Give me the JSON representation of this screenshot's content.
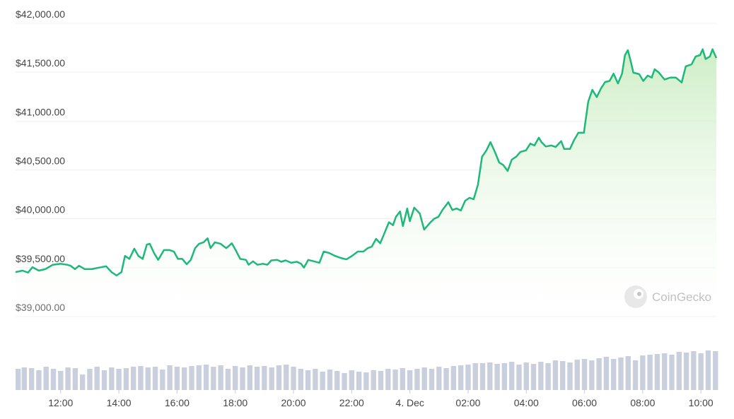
{
  "chart_data": [
    {
      "type": "line",
      "color": "#1db87a",
      "fill": true,
      "xlim": [
        10.45,
        34.53
      ],
      "xticks": [
        {
          "value": 12,
          "label": "12:00"
        },
        {
          "value": 14,
          "label": "14:00"
        },
        {
          "value": 16,
          "label": "16:00"
        },
        {
          "value": 18,
          "label": "18:00"
        },
        {
          "value": 20,
          "label": "20:00"
        },
        {
          "value": 22,
          "label": "22:00"
        },
        {
          "value": 24,
          "label": "4. Dec"
        },
        {
          "value": 26,
          "label": "02:00"
        },
        {
          "value": 28,
          "label": "04:00"
        },
        {
          "value": 30,
          "label": "06:00"
        },
        {
          "value": 32,
          "label": "08:00"
        },
        {
          "value": 34,
          "label": "10:00"
        }
      ],
      "ylim": [
        39000,
        42000
      ],
      "yticks": [
        {
          "value": 39000,
          "label": "$39,000.00"
        },
        {
          "value": 39500,
          "label": "$39,500.00"
        },
        {
          "value": 40000,
          "label": "$40,000.00"
        },
        {
          "value": 40500,
          "label": "$40,500.00"
        },
        {
          "value": 41000,
          "label": "$41,000.00"
        },
        {
          "value": 41500,
          "label": "$41,500.00"
        },
        {
          "value": 42000,
          "label": "$42,000.00"
        }
      ],
      "grid": true,
      "watermark": "CoinGecko",
      "x": [
        10.45,
        10.69,
        10.88,
        11.03,
        11.25,
        11.47,
        11.73,
        12.0,
        12.22,
        12.34,
        12.49,
        12.63,
        12.83,
        13.07,
        13.31,
        13.56,
        13.75,
        13.92,
        14.09,
        14.21,
        14.36,
        14.53,
        14.67,
        14.82,
        14.96,
        15.06,
        15.21,
        15.35,
        15.55,
        15.74,
        15.89,
        16.03,
        16.18,
        16.33,
        16.47,
        16.62,
        16.76,
        16.91,
        17.05,
        17.15,
        17.3,
        17.49,
        17.69,
        17.88,
        18.03,
        18.17,
        18.37,
        18.46,
        18.61,
        18.76,
        18.95,
        19.1,
        19.24,
        19.44,
        19.58,
        19.73,
        19.92,
        20.12,
        20.26,
        20.36,
        20.51,
        20.7,
        20.89,
        21.04,
        21.23,
        21.43,
        21.62,
        21.82,
        22.01,
        22.21,
        22.4,
        22.55,
        22.69,
        22.84,
        22.98,
        23.13,
        23.28,
        23.42,
        23.52,
        23.66,
        23.76,
        23.91,
        24.0,
        24.15,
        24.34,
        24.49,
        24.68,
        24.83,
        24.98,
        25.12,
        25.32,
        25.46,
        25.61,
        25.75,
        25.9,
        26.05,
        26.19,
        26.34,
        26.48,
        26.63,
        26.77,
        26.92,
        27.07,
        27.21,
        27.36,
        27.5,
        27.65,
        27.8,
        27.99,
        28.14,
        28.28,
        28.43,
        28.52,
        28.67,
        28.86,
        29.01,
        29.2,
        29.3,
        29.5,
        29.64,
        29.79,
        29.98,
        30.13,
        30.27,
        30.42,
        30.57,
        30.71,
        30.86,
        31.0,
        31.15,
        31.29,
        31.39,
        31.49,
        31.59,
        31.68,
        31.88,
        32.02,
        32.17,
        32.31,
        32.41,
        32.56,
        32.75,
        32.95,
        33.14,
        33.34,
        33.48,
        33.68,
        33.82,
        33.97,
        34.06,
        34.16,
        34.31,
        34.4,
        34.53
      ],
      "values": [
        39455,
        39470,
        39450,
        39505,
        39470,
        39485,
        39530,
        39540,
        39530,
        39520,
        39485,
        39520,
        39485,
        39485,
        39500,
        39515,
        39455,
        39420,
        39455,
        39620,
        39590,
        39695,
        39620,
        39590,
        39735,
        39745,
        39650,
        39580,
        39680,
        39680,
        39665,
        39590,
        39590,
        39535,
        39580,
        39700,
        39745,
        39760,
        39800,
        39700,
        39760,
        39745,
        39700,
        39750,
        39670,
        39590,
        39580,
        39530,
        39565,
        39530,
        39540,
        39530,
        39575,
        39580,
        39560,
        39575,
        39550,
        39560,
        39540,
        39500,
        39580,
        39565,
        39550,
        39665,
        39650,
        39620,
        39600,
        39585,
        39620,
        39665,
        39665,
        39700,
        39715,
        39795,
        39750,
        39855,
        39965,
        39935,
        40020,
        40075,
        39925,
        40105,
        39975,
        40115,
        40055,
        39890,
        39955,
        40000,
        40020,
        40090,
        40170,
        40090,
        40105,
        40085,
        40185,
        40215,
        40200,
        40350,
        40635,
        40700,
        40785,
        40685,
        40575,
        40550,
        40490,
        40605,
        40635,
        40685,
        40700,
        40770,
        40750,
        40830,
        40785,
        40740,
        40750,
        40735,
        40795,
        40715,
        40715,
        40805,
        40880,
        40880,
        41200,
        41320,
        41245,
        41335,
        41400,
        41410,
        41485,
        41385,
        41485,
        41675,
        41725,
        41610,
        41495,
        41480,
        41410,
        41465,
        41445,
        41530,
        41495,
        41425,
        41445,
        41445,
        41395,
        41560,
        41580,
        41660,
        41675,
        41735,
        41635,
        41660,
        41735,
        41645
      ]
    },
    {
      "type": "bar",
      "color": "#c9cfdc",
      "xlim": [
        10.45,
        34.53
      ],
      "ylim": [
        0,
        60
      ],
      "x": [
        10.5,
        10.75,
        11,
        11.25,
        11.5,
        11.75,
        12,
        12.25,
        12.5,
        12.75,
        13,
        13.25,
        13.5,
        13.75,
        14,
        14.25,
        14.5,
        14.75,
        15,
        15.25,
        15.5,
        15.75,
        16,
        16.25,
        16.5,
        16.75,
        17,
        17.25,
        17.5,
        17.75,
        18,
        18.25,
        18.5,
        18.75,
        19,
        19.25,
        19.5,
        19.75,
        20,
        20.25,
        20.5,
        20.75,
        21,
        21.25,
        21.5,
        21.75,
        22,
        22.25,
        22.5,
        22.75,
        23,
        23.25,
        23.5,
        23.75,
        24,
        24.25,
        24.5,
        24.75,
        25,
        25.25,
        25.5,
        25.75,
        26,
        26.25,
        26.5,
        26.75,
        27,
        27.25,
        27.5,
        27.75,
        28,
        28.25,
        28.5,
        28.75,
        29,
        29.25,
        29.5,
        29.75,
        30,
        30.25,
        30.5,
        30.75,
        31,
        31.25,
        31.5,
        31.75,
        32,
        32.25,
        32.5,
        32.75,
        33,
        33.25,
        33.5,
        33.75,
        34,
        34.25,
        34.5
      ],
      "values": [
        30,
        32,
        31,
        28,
        33,
        30,
        27,
        32,
        31,
        22,
        30,
        33,
        28,
        32,
        30,
        31,
        33,
        34,
        32,
        33,
        29,
        35,
        33,
        32,
        34,
        35,
        36,
        33,
        35,
        30,
        34,
        32,
        35,
        33,
        34,
        32,
        35,
        36,
        33,
        30,
        28,
        30,
        26,
        29,
        27,
        24,
        28,
        26,
        25,
        28,
        27,
        30,
        29,
        31,
        28,
        30,
        32,
        30,
        33,
        31,
        34,
        35,
        36,
        38,
        38,
        39,
        37,
        38,
        40,
        36,
        39,
        37,
        40,
        38,
        42,
        41,
        39,
        43,
        44,
        42,
        45,
        47,
        44,
        46,
        48,
        42,
        49,
        50,
        51,
        52,
        50,
        54,
        53,
        55,
        52,
        56,
        55
      ]
    }
  ]
}
